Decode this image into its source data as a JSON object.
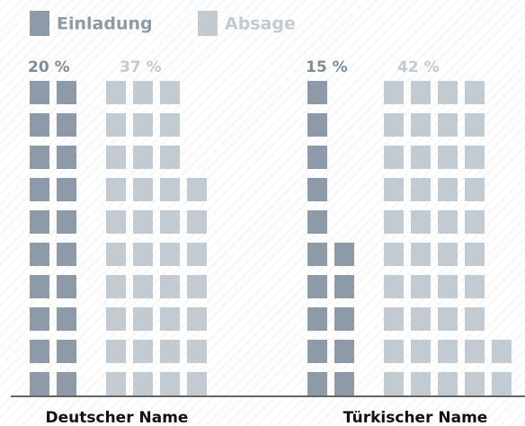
{
  "chart_data": {
    "type": "waffle",
    "categories": [
      "Deutscher Name",
      "Türkischer Name"
    ],
    "series": [
      {
        "name": "Einladung",
        "color": "#8c9ba7",
        "values": [
          20,
          15
        ],
        "value_labels": [
          "20 %",
          "15 %"
        ]
      },
      {
        "name": "Absage",
        "color": "#c2cad2",
        "values": [
          37,
          42
        ],
        "value_labels": [
          "37 %",
          "42 %"
        ]
      }
    ]
  }
}
